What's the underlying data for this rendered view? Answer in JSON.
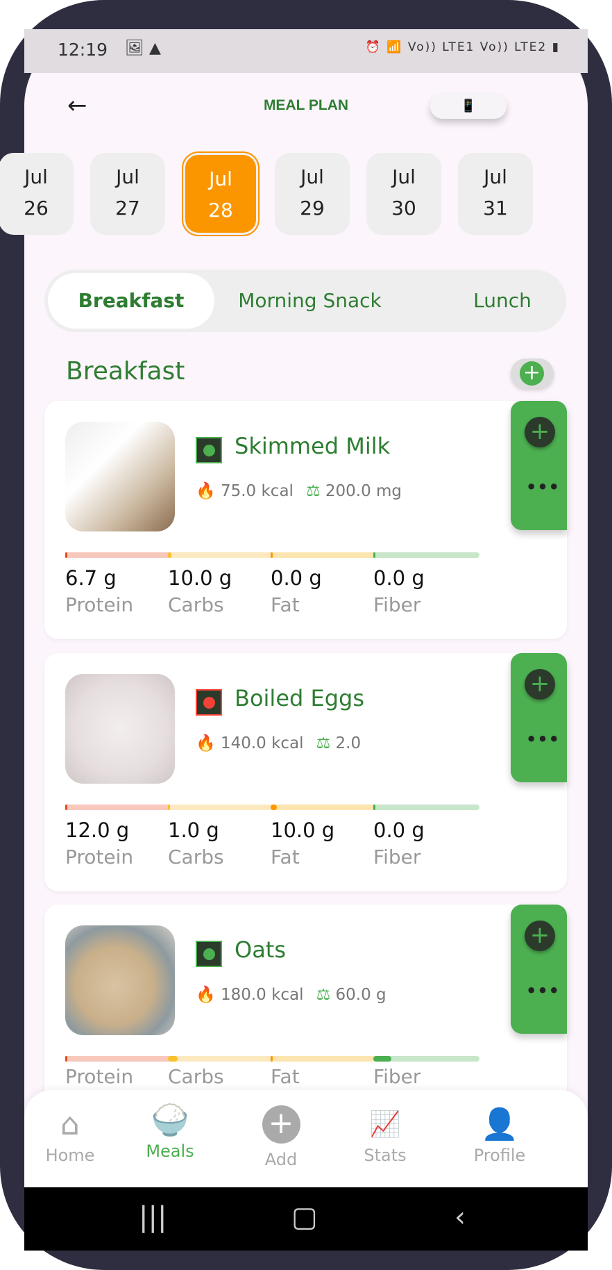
{
  "status_bar": {
    "time": "12:19",
    "left_icons": [
      "image-icon",
      "warning-icon"
    ],
    "right_icons": [
      "alarm-icon",
      "wifi-icon",
      "volte-lte1",
      "signal-icon",
      "volte-lte2",
      "signal-icon",
      "battery-charging-icon"
    ],
    "lte1": "Vo)) LTE1",
    "lte2": "Vo)) LTE2"
  },
  "header": {
    "title": "MEAL PLAN",
    "back_icon": "arrow-left-icon",
    "action_icon": "meal-plan-phone-icon"
  },
  "dates": [
    {
      "month": "Jul",
      "day": "26"
    },
    {
      "month": "Jul",
      "day": "27"
    },
    {
      "month": "Jul",
      "day": "28",
      "selected": true
    },
    {
      "month": "Jul",
      "day": "29"
    },
    {
      "month": "Jul",
      "day": "30"
    },
    {
      "month": "Jul",
      "day": "31"
    }
  ],
  "meal_tabs": [
    {
      "label": "Breakfast",
      "active": true
    },
    {
      "label": "Morning Snack"
    },
    {
      "label": "Lunch"
    }
  ],
  "section": {
    "title": "Breakfast"
  },
  "colors": {
    "primary": "#2e7d32",
    "accent_green": "#4caf50",
    "selected_date": "#fb9600",
    "protein": "#f44336",
    "carbs": "#fbc02d",
    "fat": "#ff9800",
    "fiber": "#4caf50"
  },
  "foods": [
    {
      "name": "Skimmed Milk",
      "diet": "veg",
      "calories": "75.0 kcal",
      "quantity": "200.0 mg",
      "macros": [
        {
          "value": "6.7 g",
          "label": "Protein",
          "fill": 0.02
        },
        {
          "value": "10.0 g",
          "label": "Carbs",
          "fill": 0.03
        },
        {
          "value": "0.0 g",
          "label": "Fat",
          "fill": 0.01
        },
        {
          "value": "0.0 g",
          "label": "Fiber",
          "fill": 0.01
        }
      ]
    },
    {
      "name": "Boiled Eggs",
      "diet": "non-veg",
      "calories": "140.0 kcal",
      "quantity": "2.0",
      "macros": [
        {
          "value": "12.0 g",
          "label": "Protein",
          "fill": 0.02
        },
        {
          "value": "1.0 g",
          "label": "Carbs",
          "fill": 0.01
        },
        {
          "value": "10.0 g",
          "label": "Fat",
          "fill": 0.06
        },
        {
          "value": "0.0 g",
          "label": "Fiber",
          "fill": 0.01
        }
      ]
    },
    {
      "name": "Oats",
      "diet": "veg",
      "calories": "180.0 kcal",
      "quantity": "60.0 g",
      "macros": [
        {
          "label": "Protein",
          "fill": 0.02
        },
        {
          "label": "Carbs",
          "fill": 0.09
        },
        {
          "label": "Fat",
          "fill": 0.02
        },
        {
          "label": "Fiber",
          "fill": 0.17
        }
      ]
    }
  ],
  "bottom_nav": [
    {
      "label": "Home",
      "icon": "home-icon"
    },
    {
      "label": "Meals",
      "icon": "rice-bowl-icon",
      "active": true
    },
    {
      "label": "Add",
      "icon": "add-circle-icon"
    },
    {
      "label": "Stats",
      "icon": "chart-icon"
    },
    {
      "label": "Profile",
      "icon": "person-icon"
    }
  ]
}
